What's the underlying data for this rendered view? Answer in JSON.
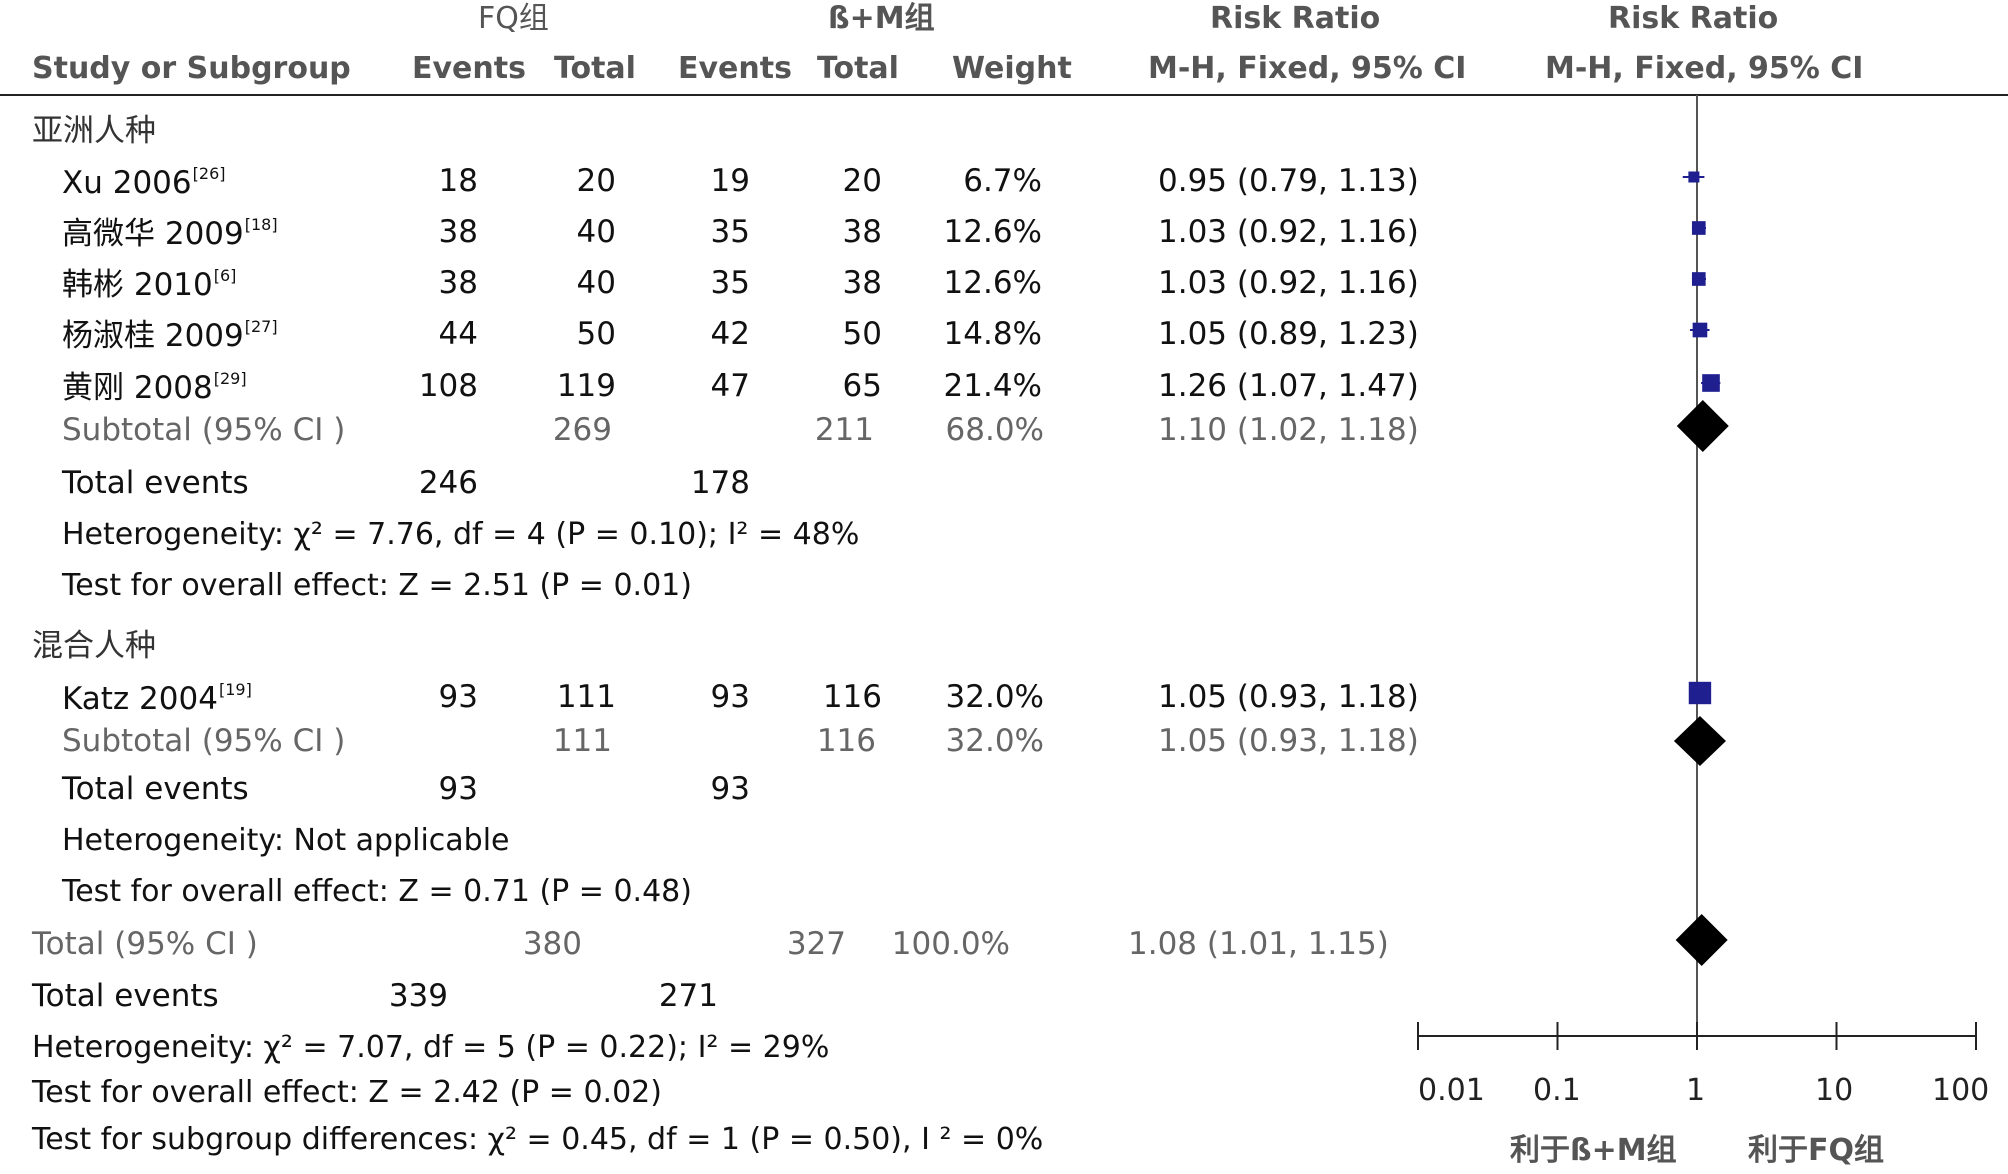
{
  "header": {
    "group1": "FQ组",
    "group2": "ß+M组",
    "rr_top": "Risk Ratio",
    "rr_top_plot": "Risk Ratio",
    "study_col": "Study or Subgroup",
    "events1": "Events",
    "total1": "Total",
    "events2": "Events",
    "total2": "Total",
    "weight": "Weight",
    "rr_method": "M-H, Fixed, 95% CI",
    "rr_method_plot": "M-H, Fixed, 95% CI"
  },
  "subgroups": [
    {
      "name": "亚洲人种",
      "studies": [
        {
          "name": "Xu 2006",
          "ref": "[26]",
          "e1": "18",
          "t1": "20",
          "e2": "19",
          "t2": "20",
          "weight": "6.7%",
          "ci_text": "0.95 (0.79, 1.13)"
        },
        {
          "name": "高微华 2009",
          "ref": "[18]",
          "e1": "38",
          "t1": "40",
          "e2": "35",
          "t2": "38",
          "weight": "12.6%",
          "ci_text": "1.03 (0.92, 1.16)"
        },
        {
          "name": "韩彬 2010",
          "ref": "[6]",
          "e1": "38",
          "t1": "40",
          "e2": "35",
          "t2": "38",
          "weight": "12.6%",
          "ci_text": "1.03 (0.92, 1.16)"
        },
        {
          "name": "杨淑桂 2009",
          "ref": "[27]",
          "e1": "44",
          "t1": "50",
          "e2": "42",
          "t2": "50",
          "weight": "14.8%",
          "ci_text": "1.05 (0.89, 1.23)"
        },
        {
          "name": "黄刚 2008",
          "ref": "[29]",
          "e1": "108",
          "t1": "119",
          "e2": "47",
          "t2": "65",
          "weight": "21.4%",
          "ci_text": "1.26 (1.07, 1.47)"
        }
      ],
      "subtotal": {
        "label": "Subtotal (95% CI )",
        "t1": "269",
        "t2": "211",
        "weight": "68.0%",
        "ci_text": "1.10 (1.02, 1.18)"
      },
      "total_events": {
        "label": "Total events",
        "e1": "246",
        "e2": "178"
      },
      "heterogeneity": "Heterogeneity: χ² = 7.76, df = 4 (P = 0.10); I² = 48%",
      "overall": "Test for overall effect: Z = 2.51 (P = 0.01)"
    },
    {
      "name": "混合人种",
      "studies": [
        {
          "name": "Katz 2004",
          "ref": "[19]",
          "e1": "93",
          "t1": "111",
          "e2": "93",
          "t2": "116",
          "weight": "32.0%",
          "ci_text": "1.05 (0.93, 1.18)"
        }
      ],
      "subtotal": {
        "label": "Subtotal (95% CI )",
        "t1": "111",
        "t2": "116",
        "weight": "32.0%",
        "ci_text": "1.05 (0.93, 1.18)"
      },
      "total_events": {
        "label": "Total events",
        "e1": "93",
        "e2": "93"
      },
      "heterogeneity": "Heterogeneity: Not applicable",
      "overall": "Test for overall effect: Z = 0.71 (P = 0.48)"
    }
  ],
  "total": {
    "label": "Total (95% CI )",
    "t1": "380",
    "t2": "327",
    "weight": "100.0%",
    "ci_text": "1.08 (1.01, 1.15)"
  },
  "total_events": {
    "label": "Total events",
    "e1": "339",
    "e2": "271"
  },
  "footer": {
    "heterogeneity": "Heterogeneity: χ² = 7.07, df = 5 (P = 0.22); I² = 29%",
    "overall": "Test for overall effect: Z = 2.42 (P = 0.02)",
    "subgroup_diff": "Test for subgroup differences: χ² = 0.45, df = 1 (P = 0.50), I ² = 0%"
  },
  "axis": {
    "scale": "log",
    "ticks": [
      "0.01",
      "0.1",
      "1",
      "10",
      "100"
    ],
    "favours_left": "利于ß+M组",
    "favours_right": "利于FQ组"
  },
  "chart_data": {
    "type": "forest",
    "scale": "log",
    "xlim": [
      0.01,
      100
    ],
    "null_value": 1,
    "studies": [
      {
        "name": "Xu 2006",
        "rr": 0.95,
        "lo": 0.79,
        "hi": 1.13,
        "weight": 6.7
      },
      {
        "name": "高微华 2009",
        "rr": 1.03,
        "lo": 0.92,
        "hi": 1.16,
        "weight": 12.6
      },
      {
        "name": "韩彬 2010",
        "rr": 1.03,
        "lo": 0.92,
        "hi": 1.16,
        "weight": 12.6
      },
      {
        "name": "杨淑桂 2009",
        "rr": 1.05,
        "lo": 0.89,
        "hi": 1.23,
        "weight": 14.8
      },
      {
        "name": "黄刚 2008",
        "rr": 1.26,
        "lo": 1.07,
        "hi": 1.47,
        "weight": 21.4
      },
      {
        "name": "Katz 2004",
        "rr": 1.05,
        "lo": 0.93,
        "hi": 1.18,
        "weight": 32.0
      }
    ],
    "summaries": [
      {
        "name": "Subtotal 亚洲人种",
        "rr": 1.1,
        "lo": 1.02,
        "hi": 1.18
      },
      {
        "name": "Subtotal 混合人种",
        "rr": 1.05,
        "lo": 0.93,
        "hi": 1.18
      },
      {
        "name": "Total",
        "rr": 1.08,
        "lo": 1.01,
        "hi": 1.15
      }
    ],
    "colors": {
      "study_box": "#1f1f8f",
      "ci_line": "#1f1f8f",
      "diamond": "#000000",
      "null_line": "#555555"
    }
  }
}
